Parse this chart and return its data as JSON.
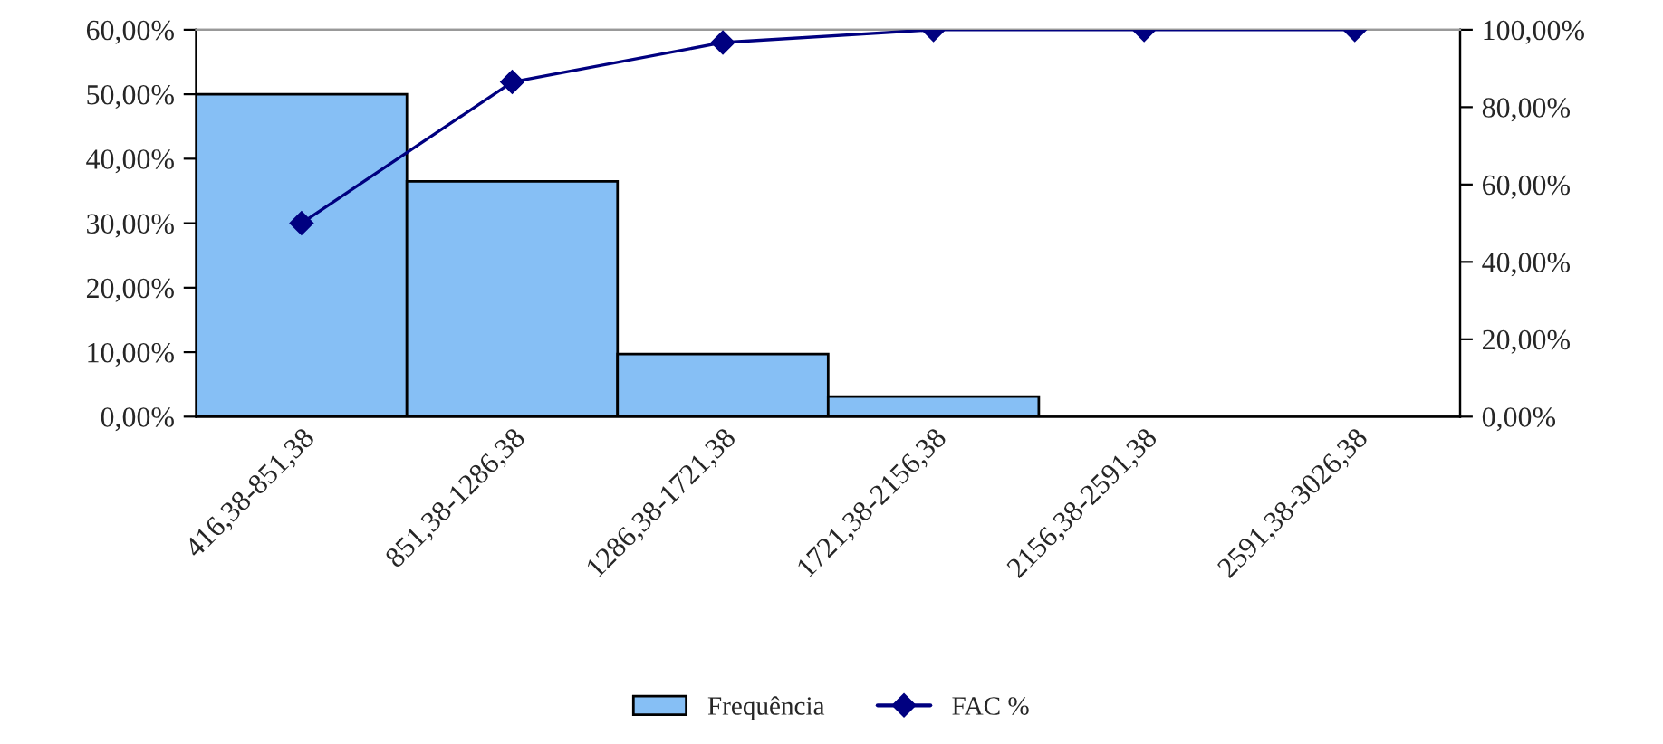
{
  "chart_data": {
    "type": "bar",
    "categories": [
      "416,38-851,38",
      "851,38-1286,38",
      "1286,38-1721,38",
      "1721,38-2156,38",
      "2156,38-2591,38",
      "2591,38-3026,38"
    ],
    "series": [
      {
        "name": "Frequência",
        "color": "#86bff5",
        "values": [
          50.0,
          36.5,
          9.7,
          3.1,
          0,
          0
        ]
      },
      {
        "name": "FAC %",
        "type": "line",
        "axis": "y2",
        "color": "#000080",
        "marker": "diamond",
        "values": [
          50.0,
          86.5,
          96.7,
          100,
          100,
          100
        ]
      }
    ],
    "ylim": [
      0,
      60
    ],
    "yticks": [
      {
        "value": 0,
        "label": "0,00%"
      },
      {
        "value": 10,
        "label": "10,00%"
      },
      {
        "value": 20,
        "label": "20,00%"
      },
      {
        "value": 30,
        "label": "30,00%"
      },
      {
        "value": 40,
        "label": "40,00%"
      },
      {
        "value": 50,
        "label": "50,00%"
      },
      {
        "value": 60,
        "label": "60,00%"
      }
    ],
    "y2lim": [
      0,
      100
    ],
    "y2ticks": [
      {
        "value": 0,
        "label": "0,00%"
      },
      {
        "value": 20,
        "label": "20,00%"
      },
      {
        "value": 40,
        "label": "40,00%"
      },
      {
        "value": 60,
        "label": "60,00%"
      },
      {
        "value": 80,
        "label": "80,00%"
      },
      {
        "value": 100,
        "label": "100,00%"
      }
    ],
    "grid": false,
    "legend": "bottom"
  }
}
